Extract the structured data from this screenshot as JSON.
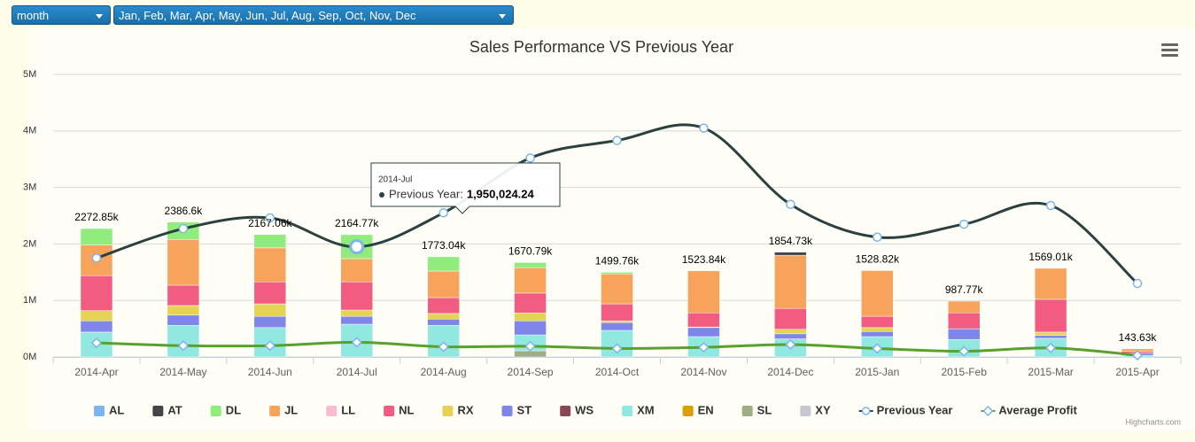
{
  "controls": {
    "period": "month",
    "months": "Jan, Feb, Mar, Apr, May, Jun, Jul, Aug, Sep, Oct, Nov, Dec"
  },
  "chart_data": {
    "type": "stacked-column",
    "title": "Sales Performance VS Previous Year",
    "categories": [
      "2014-Apr",
      "2014-May",
      "2014-Jun",
      "2014-Jul",
      "2014-Aug",
      "2014-Sep",
      "2014-Oct",
      "2014-Nov",
      "2014-Dec",
      "2015-Jan",
      "2015-Feb",
      "2015-Mar",
      "2015-Apr"
    ],
    "ylim": [
      0,
      5000000
    ],
    "yticks": [
      {
        "value": 0,
        "label": "0M"
      },
      {
        "value": 1000000,
        "label": "1M"
      },
      {
        "value": 2000000,
        "label": "2M"
      },
      {
        "value": 3000000,
        "label": "3M"
      },
      {
        "value": 4000000,
        "label": "4M"
      },
      {
        "value": 5000000,
        "label": "5M"
      }
    ],
    "grid": true,
    "series": [
      {
        "name": "AL",
        "color": "#7cb5ec",
        "values": [
          null,
          null,
          null,
          null,
          null,
          null,
          null,
          null,
          null,
          null,
          null,
          null,
          null
        ]
      },
      {
        "name": "AT",
        "color": "#434348",
        "values": [
          null,
          null,
          null,
          null,
          null,
          null,
          null,
          null,
          54730,
          null,
          null,
          null,
          null
        ]
      },
      {
        "name": "DL",
        "color": "#90ed7d",
        "values": [
          292850,
          306600,
          237060,
          424770,
          253040,
          90790,
          29760,
          null,
          null,
          null,
          null,
          null,
          null
        ]
      },
      {
        "name": "JL",
        "color": "#f7a35c",
        "values": [
          540000,
          810000,
          600000,
          410000,
          470000,
          450000,
          530000,
          743840,
          940000,
          808820,
          207770,
          549010,
          43630
        ]
      },
      {
        "name": "LL",
        "color": "#f8bbd0",
        "values": [
          null,
          null,
          null,
          null,
          null,
          null,
          null,
          null,
          null,
          null,
          null,
          null,
          null
        ]
      },
      {
        "name": "NL",
        "color": "#f15c80",
        "values": [
          620000,
          360000,
          390000,
          500000,
          280000,
          350000,
          300000,
          250000,
          370000,
          200000,
          280000,
          580000,
          30000
        ]
      },
      {
        "name": "RX",
        "color": "#e4d354",
        "values": [
          180000,
          170000,
          220000,
          110000,
          100000,
          140000,
          30000,
          10000,
          80000,
          70000,
          null,
          60000,
          null
        ]
      },
      {
        "name": "ST",
        "color": "#8085e9",
        "values": [
          200000,
          180000,
          200000,
          140000,
          110000,
          250000,
          140000,
          160000,
          90000,
          90000,
          190000,
          50000,
          40000
        ]
      },
      {
        "name": "WS",
        "color": "#8d4653",
        "values": [
          null,
          null,
          null,
          null,
          null,
          null,
          null,
          null,
          null,
          null,
          null,
          null,
          null
        ]
      },
      {
        "name": "XM",
        "color": "#91e8e1",
        "values": [
          440000,
          560000,
          520000,
          580000,
          560000,
          280000,
          470000,
          360000,
          320000,
          360000,
          310000,
          330000,
          30000
        ]
      },
      {
        "name": "EN",
        "color": "#d9a000",
        "values": [
          null,
          null,
          null,
          null,
          null,
          null,
          null,
          null,
          null,
          null,
          null,
          null,
          null
        ]
      },
      {
        "name": "SL",
        "color": "#9caf84",
        "values": [
          null,
          null,
          null,
          null,
          null,
          110000,
          null,
          null,
          null,
          null,
          null,
          null,
          null
        ]
      },
      {
        "name": "XY",
        "color": "#c8c8d0",
        "values": [
          null,
          null,
          null,
          null,
          null,
          null,
          null,
          null,
          null,
          null,
          null,
          null,
          null
        ]
      },
      {
        "name": "Previous Year",
        "type": "spline",
        "color": "#2c4040",
        "marker_color": "#7cb5ec",
        "values": [
          1750000,
          2270000,
          2460000,
          1950024.24,
          2550000,
          3520000,
          3830000,
          4050000,
          2700000,
          2120000,
          2350000,
          2680000,
          1300000
        ]
      },
      {
        "name": "Average Profit",
        "type": "spline",
        "color": "#5aa02c",
        "marker_color": "#7cb5ec",
        "values": [
          250000,
          200000,
          200000,
          260000,
          180000,
          190000,
          150000,
          170000,
          220000,
          150000,
          100000,
          160000,
          30000
        ]
      }
    ],
    "stack_labels": [
      "2272.85k",
      "2386.6k",
      "2167.06k",
      "2164.77k",
      "1773.04k",
      "1670.79k",
      "1499.76k",
      "1523.84k",
      "1854.73k",
      "1528.82k",
      "987.77k",
      "1569.01k",
      "143.63k"
    ],
    "tooltip": {
      "header": "2014-Jul",
      "label": "Previous Year:",
      "value": 1950024.24,
      "value_label": "1,950,024.24"
    },
    "credits": "Highcharts.com"
  }
}
